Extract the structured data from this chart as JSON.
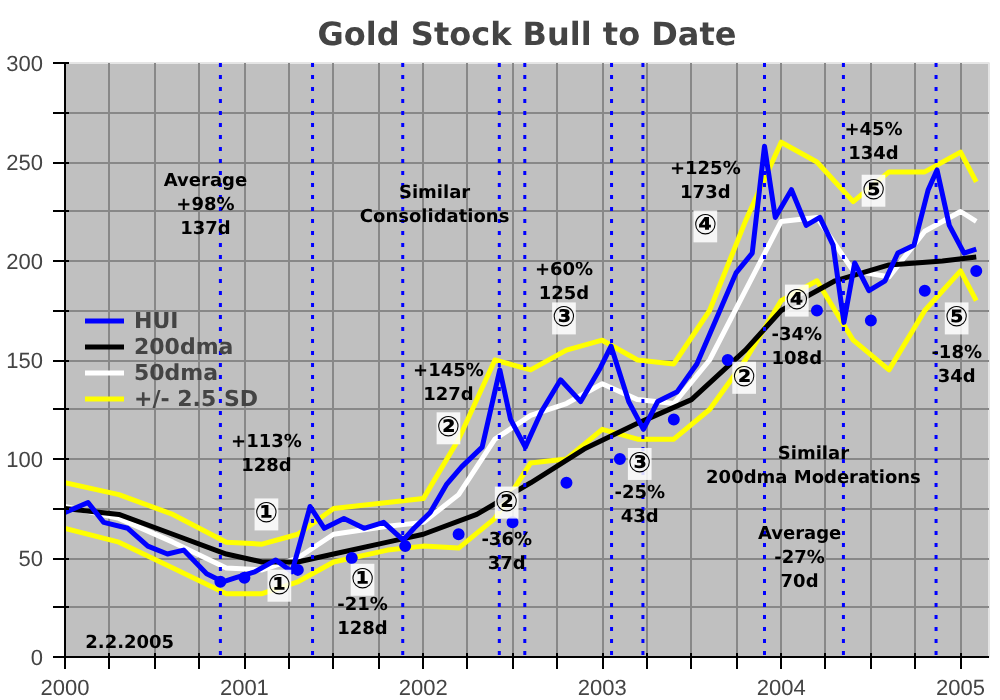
{
  "chart_data": {
    "type": "line",
    "title": "Gold Stock Bull to Date",
    "xlim": [
      "2000-01-01",
      "2005-02-28"
    ],
    "ylim": [
      0,
      300
    ],
    "xticks": [
      {
        "value": "2000-01-01",
        "label": "2000"
      },
      {
        "value": "2000-04-01",
        "label": null
      },
      {
        "value": "2000-07-01",
        "label": null
      },
      {
        "value": "2000-10-01",
        "label": null
      },
      {
        "value": "2001-01-01",
        "label": "2001"
      },
      {
        "value": "2001-04-01",
        "label": null
      },
      {
        "value": "2001-07-01",
        "label": null
      },
      {
        "value": "2001-10-01",
        "label": null
      },
      {
        "value": "2002-01-01",
        "label": "2002"
      },
      {
        "value": "2002-04-01",
        "label": null
      },
      {
        "value": "2002-07-01",
        "label": null
      },
      {
        "value": "2002-10-01",
        "label": null
      },
      {
        "value": "2003-01-01",
        "label": "2003"
      },
      {
        "value": "2003-04-01",
        "label": null
      },
      {
        "value": "2003-07-01",
        "label": null
      },
      {
        "value": "2003-10-01",
        "label": null
      },
      {
        "value": "2004-01-01",
        "label": "2004"
      },
      {
        "value": "2004-04-01",
        "label": null
      },
      {
        "value": "2004-07-01",
        "label": null
      },
      {
        "value": "2004-10-01",
        "label": null
      },
      {
        "value": "2005-01-01",
        "label": "2005"
      }
    ],
    "yticks": [
      0,
      {
        "value": 25,
        "label": null
      },
      50,
      {
        "value": 75,
        "label": null
      },
      100,
      {
        "value": 125,
        "label": null
      },
      150,
      {
        "value": 175,
        "label": null
      },
      200,
      {
        "value": 225,
        "label": null
      },
      250,
      {
        "value": 275,
        "label": null
      },
      300
    ],
    "grid": true,
    "legend": "left",
    "series": [
      {
        "name": "+/- 2.5 SD",
        "color": "#ffff00",
        "x": [
          "2000-01-01",
          "2000-04-20",
          "2000-08-08",
          "2000-11-25",
          "2001-02-06",
          "2001-04-20",
          "2001-07-02",
          "2001-10-20",
          "2002-01-01",
          "2002-03-14",
          "2002-05-27",
          "2002-08-08",
          "2002-10-20",
          "2003-01-01",
          "2003-03-14",
          "2003-05-27",
          "2003-08-08",
          "2003-10-20",
          "2004-01-01",
          "2004-03-14",
          "2004-05-27",
          "2004-08-08",
          "2004-10-20",
          "2005-01-01",
          "2005-02-02"
        ],
        "values": [
          88,
          82,
          72,
          58,
          57,
          62,
          75,
          78,
          80,
          110,
          150,
          145,
          155,
          160,
          150,
          148,
          175,
          220,
          260,
          250,
          230,
          245,
          245,
          255,
          240
        ]
      },
      {
        "color": "#ffff00",
        "x": [
          "2000-01-01",
          "2000-04-20",
          "2000-08-08",
          "2000-11-25",
          "2001-02-06",
          "2001-04-20",
          "2001-07-02",
          "2001-10-20",
          "2002-01-01",
          "2002-03-14",
          "2002-05-27",
          "2002-08-08",
          "2002-10-20",
          "2003-01-01",
          "2003-03-14",
          "2003-05-27",
          "2003-08-08",
          "2003-10-20",
          "2004-01-01",
          "2004-03-14",
          "2004-05-27",
          "2004-08-08",
          "2004-10-20",
          "2005-01-01",
          "2005-02-02"
        ],
        "values": [
          65,
          58,
          45,
          32,
          32,
          38,
          48,
          54,
          56,
          55,
          70,
          98,
          100,
          115,
          110,
          110,
          125,
          150,
          180,
          190,
          160,
          145,
          175,
          195,
          180
        ]
      },
      {
        "name": "50dma",
        "color": "#ffffff",
        "x": [
          "2000-01-01",
          "2000-04-20",
          "2000-08-08",
          "2000-11-25",
          "2001-02-06",
          "2001-04-20",
          "2001-07-02",
          "2001-10-20",
          "2002-01-01",
          "2002-03-14",
          "2002-05-27",
          "2002-08-08",
          "2002-10-20",
          "2003-01-01",
          "2003-03-14",
          "2003-05-27",
          "2003-08-08",
          "2003-10-20",
          "2004-01-01",
          "2004-03-14",
          "2004-05-27",
          "2004-08-08",
          "2004-10-20",
          "2005-01-01",
          "2005-02-02"
        ],
        "values": [
          76,
          70,
          58,
          45,
          44,
          50,
          62,
          66,
          68,
          82,
          110,
          122,
          128,
          138,
          130,
          128,
          150,
          185,
          220,
          222,
          195,
          192,
          215,
          225,
          220
        ]
      },
      {
        "name": "200dma",
        "color": "#000000",
        "x": [
          "2000-01-01",
          "2000-04-20",
          "2000-08-08",
          "2000-11-25",
          "2001-02-06",
          "2001-04-20",
          "2001-07-02",
          "2001-10-20",
          "2002-01-01",
          "2002-04-20",
          "2002-08-08",
          "2002-11-25",
          "2003-03-14",
          "2003-07-02",
          "2003-10-20",
          "2004-01-01",
          "2004-04-20",
          "2004-08-08",
          "2004-11-25",
          "2005-02-02"
        ],
        "values": [
          75,
          72,
          62,
          52,
          48,
          48,
          52,
          58,
          62,
          72,
          88,
          105,
          118,
          130,
          155,
          175,
          190,
          198,
          200,
          202
        ]
      },
      {
        "type": "scatter",
        "marker": "circle",
        "color": "#0000ff",
        "x": [
          "2000-11-13",
          "2001-01-01",
          "2001-04-20",
          "2001-08-08",
          "2001-11-25",
          "2002-03-14",
          "2002-07-02",
          "2002-10-20",
          "2003-02-06",
          "2003-05-27",
          "2003-09-14",
          "2004-03-14",
          "2004-07-02",
          "2004-10-20",
          "2005-02-02"
        ],
        "values": [
          38,
          40,
          44,
          50,
          56,
          62,
          68,
          88,
          100,
          120,
          150,
          175,
          170,
          185,
          195
        ]
      },
      {
        "name": "HUI",
        "color": "#0000ff",
        "x": [
          "2000-01-01",
          "2000-02-17",
          "2000-03-20",
          "2000-05-08",
          "2000-06-18",
          "2000-07-28",
          "2000-08-30",
          "2000-10-16",
          "2000-11-18",
          "2000-12-13",
          "2001-01-22",
          "2001-03-06",
          "2001-04-08",
          "2001-05-15",
          "2001-06-13",
          "2001-07-23",
          "2001-09-02",
          "2001-10-12",
          "2001-11-21",
          "2001-12-13",
          "2002-01-15",
          "2002-02-17",
          "2002-03-20",
          "2002-05-01",
          "2002-06-06",
          "2002-06-28",
          "2002-07-28",
          "2002-08-30",
          "2002-10-08",
          "2002-11-18",
          "2002-12-28",
          "2003-01-19",
          "2003-02-24",
          "2003-03-26",
          "2003-04-24",
          "2003-06-03",
          "2003-07-13",
          "2003-08-22",
          "2003-10-01",
          "2003-11-03",
          "2003-11-28",
          "2003-12-20",
          "2004-01-22",
          "2004-02-21",
          "2004-03-20",
          "2004-04-16",
          "2004-05-08",
          "2004-05-30",
          "2004-06-28",
          "2004-07-31",
          "2004-08-26",
          "2004-09-28",
          "2004-10-27",
          "2004-11-14",
          "2004-12-09",
          "2005-01-08",
          "2005-02-02"
        ],
        "values": [
          73,
          78,
          68,
          65,
          56,
          52,
          54,
          42,
          38,
          40,
          43,
          49,
          43,
          76,
          65,
          70,
          65,
          68,
          59,
          65,
          73,
          87,
          96,
          106,
          145,
          120,
          106,
          124,
          140,
          129,
          146,
          157,
          129,
          115,
          129,
          134,
          148,
          171,
          194,
          204,
          258,
          222,
          236,
          218,
          222,
          208,
          169,
          199,
          185,
          190,
          204,
          208,
          236,
          246,
          218,
          204,
          206
        ]
      }
    ],
    "ref_lines": [
      {
        "axis": "x",
        "value": "2000-11-13",
        "color": "#0000ff",
        "line_style": "dotted"
      },
      {
        "axis": "x",
        "value": "2001-05-20",
        "color": "#0000ff",
        "line_style": "dotted"
      },
      {
        "axis": "x",
        "value": "2001-11-20",
        "color": "#0000ff",
        "line_style": "dotted"
      },
      {
        "axis": "x",
        "value": "2002-06-05",
        "color": "#0000ff",
        "line_style": "dotted"
      },
      {
        "axis": "x",
        "value": "2002-07-27",
        "color": "#0000ff",
        "line_style": "dotted"
      },
      {
        "axis": "x",
        "value": "2003-01-20",
        "color": "#0000ff",
        "line_style": "dotted"
      },
      {
        "axis": "x",
        "value": "2003-03-25",
        "color": "#0000ff",
        "line_style": "dotted"
      },
      {
        "axis": "x",
        "value": "2003-11-28",
        "color": "#0000ff",
        "line_style": "dotted"
      },
      {
        "axis": "x",
        "value": "2004-05-07",
        "color": "#0000ff",
        "line_style": "dotted"
      },
      {
        "axis": "x",
        "value": "2004-11-12",
        "color": "#0000ff",
        "line_style": "dotted"
      }
    ],
    "annotations": [
      "Average\n+98%\n137d",
      "+113%\n128d",
      "①",
      "①",
      "①",
      "-21%\n128d",
      "+145%\n127d",
      "②",
      "②",
      "-36%\n37d",
      "+60%\n125d",
      "③",
      "③",
      "-25%\n43d",
      "②",
      "+125%\n173d",
      "④",
      "④",
      "-34%\n108d",
      "+45%\n134d",
      "⑤",
      "⑤",
      "-18%\n34d",
      "Average\n-27%\n70d",
      "Similar\nConsolidations",
      "Similar\n200dma Moderations",
      "2.2.2005"
    ]
  }
}
